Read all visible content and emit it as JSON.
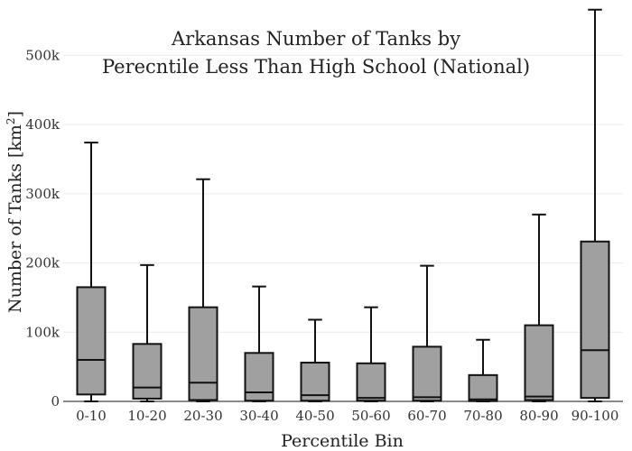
{
  "chart_data": {
    "type": "box",
    "title": [
      "Arkansas Number of Tanks by",
      "Perecntile Less Than High School (National)"
    ],
    "xlabel": "Percentile Bin",
    "ylabel": "Number of Tanks  [km",
    "ylabel_superscript": "2",
    "ylabel_close": "]",
    "ylim": [
      0,
      580000
    ],
    "yticks": [
      0,
      100000,
      200000,
      300000,
      400000,
      500000
    ],
    "ytick_labels": [
      "0",
      "100k",
      "200k",
      "300k",
      "400k",
      "500k"
    ],
    "grid": true,
    "box_color": "#a0a0a0",
    "categories": [
      "0-10",
      "10-20",
      "20-30",
      "30-40",
      "40-50",
      "50-60",
      "60-70",
      "70-80",
      "80-90",
      "90-100"
    ],
    "boxes": [
      {
        "min": 0,
        "q1": 10000,
        "median": 60000,
        "q3": 165000,
        "max": 374000
      },
      {
        "min": 0,
        "q1": 4000,
        "median": 20000,
        "q3": 83000,
        "max": 197000
      },
      {
        "min": 0,
        "q1": 2000,
        "median": 27000,
        "q3": 136000,
        "max": 321000
      },
      {
        "min": 0,
        "q1": 1000,
        "median": 13000,
        "q3": 70000,
        "max": 166000
      },
      {
        "min": 0,
        "q1": 1000,
        "median": 9000,
        "q3": 56000,
        "max": 118000
      },
      {
        "min": 0,
        "q1": 1000,
        "median": 5000,
        "q3": 55000,
        "max": 136000
      },
      {
        "min": 0,
        "q1": 1000,
        "median": 6000,
        "q3": 79000,
        "max": 196000
      },
      {
        "min": 0,
        "q1": 500,
        "median": 3000,
        "q3": 38000,
        "max": 89000
      },
      {
        "min": 0,
        "q1": 2000,
        "median": 7000,
        "q3": 110000,
        "max": 270000
      },
      {
        "min": 0,
        "q1": 5000,
        "median": 74000,
        "q3": 231000,
        "max": 566000
      }
    ]
  }
}
